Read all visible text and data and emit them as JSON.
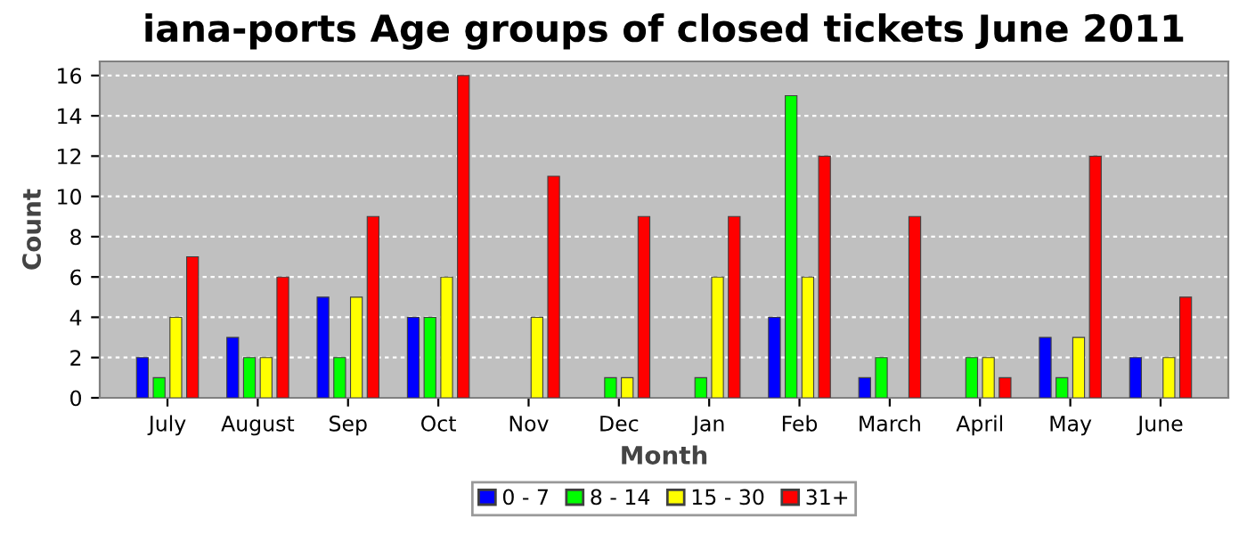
{
  "chart_data": {
    "type": "bar",
    "title": "iana-ports Age groups of closed tickets June 2011",
    "xlabel": "Month",
    "ylabel": "Count",
    "categories": [
      "July",
      "August",
      "Sep",
      "Oct",
      "Nov",
      "Dec",
      "Jan",
      "Feb",
      "March",
      "April",
      "May",
      "June"
    ],
    "series": [
      {
        "name": "0 - 7",
        "color": "#0000ff",
        "values": [
          2,
          3,
          5,
          4,
          0,
          0,
          0,
          4,
          1,
          0,
          3,
          2
        ]
      },
      {
        "name": "8 - 14",
        "color": "#00ff00",
        "values": [
          1,
          2,
          2,
          4,
          0,
          1,
          1,
          15,
          2,
          2,
          1,
          0
        ]
      },
      {
        "name": "15 - 30",
        "color": "#ffff00",
        "values": [
          4,
          2,
          5,
          6,
          4,
          1,
          6,
          6,
          0,
          2,
          3,
          2
        ]
      },
      {
        "name": "31+",
        "color": "#ff0000",
        "values": [
          7,
          6,
          9,
          16,
          11,
          9,
          9,
          12,
          9,
          1,
          12,
          5
        ]
      }
    ],
    "ylim": [
      0,
      16.7
    ],
    "yticks": [
      0,
      2,
      4,
      6,
      8,
      10,
      12,
      14,
      16
    ],
    "grid": "y",
    "legend": "bottom"
  }
}
